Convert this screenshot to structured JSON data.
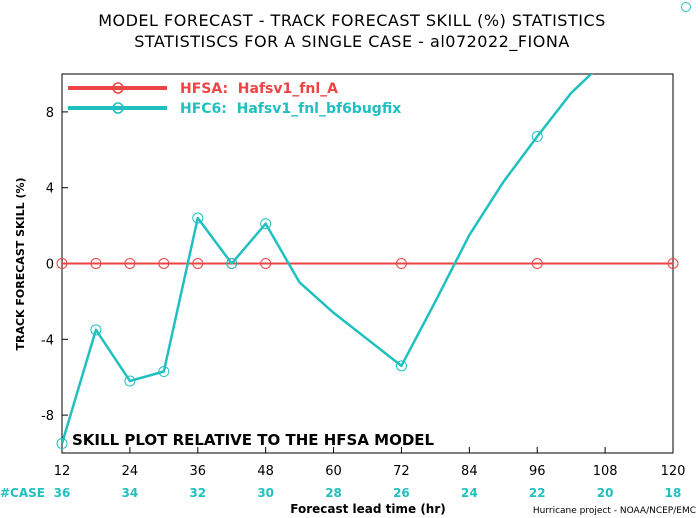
{
  "chart_data": {
    "type": "line",
    "title_line1": "MODEL FORECAST - TRACK FORECAST SKILL (%) STATISTICS",
    "title_line2": "STATISTISCS FOR A SINGLE CASE - al072022_FIONA",
    "xlabel": "Forecast lead time (hr)",
    "ylabel": "TRACK FORECAST SKILL (%)",
    "xlim": [
      12,
      120
    ],
    "ylim": [
      -10,
      10
    ],
    "x_ticks": [
      12,
      24,
      36,
      48,
      60,
      72,
      84,
      96,
      108,
      120
    ],
    "y_ticks": [
      -8,
      -4,
      0,
      4,
      8
    ],
    "case_label": "#CASE",
    "cases": [
      36,
      34,
      32,
      30,
      28,
      26,
      24,
      22,
      20,
      18
    ],
    "grid": false,
    "legend_position": "top-left",
    "annotation": "SKILL PLOT RELATIVE TO THE HFSA MODEL",
    "credit": "Hurricane project - NOAA/NCEP/EMC",
    "series": [
      {
        "name": "HFSA:  Hafsv1_fnl_A",
        "color": "#ee4444",
        "marker_x": [
          12,
          18,
          24,
          30,
          36,
          42,
          48,
          72,
          96,
          120
        ],
        "marker_y": [
          0,
          0,
          0,
          0,
          0,
          0,
          0,
          0,
          0,
          0
        ],
        "line_x": [
          12,
          120
        ],
        "line_y": [
          0,
          0
        ]
      },
      {
        "name": "HFC6:  Hafsv1_fnl_bf6bugfix",
        "color": "#20c0c0",
        "marker_x": [
          12,
          18,
          24,
          30,
          36,
          42,
          48,
          72,
          96
        ],
        "marker_y": [
          -9.5,
          -3.5,
          -6.2,
          -5.7,
          2.4,
          0.0,
          2.1,
          -5.4,
          6.7
        ],
        "line_x": [
          12,
          18,
          24,
          30,
          36,
          42,
          48,
          54,
          60,
          66,
          72,
          78,
          84,
          90,
          96,
          102,
          108
        ],
        "line_y": [
          -9.5,
          -3.5,
          -6.2,
          -5.7,
          2.4,
          0.0,
          2.1,
          -1.0,
          -2.6,
          -4.0,
          -5.4,
          -2.0,
          1.5,
          4.3,
          6.7,
          9.0,
          10.7
        ]
      }
    ]
  }
}
